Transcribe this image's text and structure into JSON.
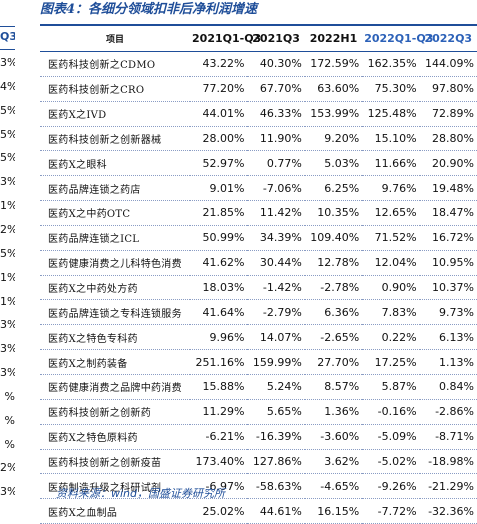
{
  "figure": {
    "title": "图表4：各细分领域扣非后净利润增速"
  },
  "left_fragment": {
    "header": "Q3",
    "values": [
      "3%",
      "4%",
      "5%",
      "5%",
      "5%",
      "3%",
      "1%",
      "2%",
      "5%",
      "1%",
      "1%",
      "3%",
      "3%",
      "3%",
      "%",
      "%",
      "%",
      "2%",
      "3%"
    ]
  },
  "table": {
    "headers": [
      "项目",
      "2021Q1-Q3",
      "2021Q3",
      "2022H1",
      "2022Q1-Q3",
      "2022Q3"
    ],
    "rows": [
      {
        "name": "医药科技创新之CDMO",
        "values": [
          "43.22%",
          "40.30%",
          "172.59%",
          "162.35%",
          "144.09%"
        ]
      },
      {
        "name": "医药科技创新之CRO",
        "values": [
          "77.20%",
          "67.70%",
          "63.60%",
          "75.30%",
          "97.80%"
        ]
      },
      {
        "name": "医药X之IVD",
        "values": [
          "44.01%",
          "46.33%",
          "153.99%",
          "125.48%",
          "72.89%"
        ]
      },
      {
        "name": "医药科技创新之创新器械",
        "values": [
          "28.00%",
          "11.90%",
          "9.20%",
          "15.10%",
          "28.80%"
        ]
      },
      {
        "name": "医药X之眼科",
        "values": [
          "52.97%",
          "0.77%",
          "5.03%",
          "11.66%",
          "20.90%"
        ]
      },
      {
        "name": "医药品牌连锁之药店",
        "values": [
          "9.01%",
          "-7.06%",
          "6.25%",
          "9.76%",
          "19.48%"
        ]
      },
      {
        "name": "医药X之中药OTC",
        "values": [
          "21.85%",
          "11.42%",
          "10.35%",
          "12.65%",
          "18.47%"
        ]
      },
      {
        "name": "医药品牌连锁之ICL",
        "values": [
          "50.99%",
          "34.39%",
          "109.40%",
          "71.52%",
          "16.72%"
        ]
      },
      {
        "name": "医药健康消费之儿科特色消费",
        "values": [
          "41.62%",
          "30.44%",
          "12.78%",
          "12.04%",
          "10.95%"
        ]
      },
      {
        "name": "医药X之中药处方药",
        "values": [
          "18.03%",
          "-1.42%",
          "-2.78%",
          "0.90%",
          "10.37%"
        ]
      },
      {
        "name": "医药品牌连锁之专科连锁服务",
        "values": [
          "41.64%",
          "-2.79%",
          "6.36%",
          "7.83%",
          "9.73%"
        ]
      },
      {
        "name": "医药X之特色专科药",
        "values": [
          "9.96%",
          "14.07%",
          "-2.65%",
          "0.22%",
          "6.13%"
        ]
      },
      {
        "name": "医药X之制药装备",
        "values": [
          "251.16%",
          "159.99%",
          "27.70%",
          "17.25%",
          "1.13%"
        ]
      },
      {
        "name": "医药健康消费之品牌中药消费",
        "values": [
          "15.88%",
          "5.24%",
          "8.57%",
          "5.87%",
          "0.84%"
        ]
      },
      {
        "name": "医药科技创新之创新药",
        "values": [
          "11.29%",
          "5.65%",
          "1.36%",
          "-0.16%",
          "-2.86%"
        ]
      },
      {
        "name": "医药X之特色原料药",
        "values": [
          "-6.21%",
          "-16.39%",
          "-3.60%",
          "-5.09%",
          "-8.71%"
        ]
      },
      {
        "name": "医药科技创新之创新疫苗",
        "values": [
          "173.40%",
          "127.86%",
          "3.62%",
          "-5.02%",
          "-18.98%"
        ]
      },
      {
        "name": "医药制造升级之科研试剂",
        "values": [
          "-6.97%",
          "-58.63%",
          "-4.65%",
          "-9.26%",
          "-21.29%"
        ]
      },
      {
        "name": "医药X之血制品",
        "values": [
          "25.02%",
          "44.61%",
          "16.15%",
          "-7.72%",
          "-32.36%"
        ]
      }
    ]
  },
  "source_note": "资料来源：wind，国盛证券研究所",
  "colors": {
    "accent": "#1f4e99",
    "header_highlight": "#2c61b8"
  }
}
